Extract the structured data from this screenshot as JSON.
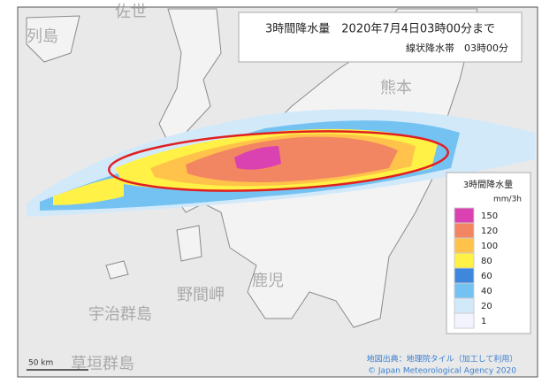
{
  "header": {
    "title": "3時間降水量　2020年7月4日03時00分まで",
    "subtitle": "線状降水帯　03時00分"
  },
  "legend": {
    "title": "3時間降水量",
    "unit": "mm/3h",
    "levels": [
      {
        "label": 150,
        "color": "#d942b0"
      },
      {
        "label": 120,
        "color": "#f38662"
      },
      {
        "label": 100,
        "color": "#ffc24a"
      },
      {
        "label": 80,
        "color": "#fff145"
      },
      {
        "label": 60,
        "color": "#3f87dc"
      },
      {
        "label": 40,
        "color": "#74c2f2"
      },
      {
        "label": 20,
        "color": "#d2e9fa"
      },
      {
        "label": 1,
        "color": "#f4f4ff"
      }
    ]
  },
  "places": [
    "佐世",
    "列島",
    "熊本",
    "鹿児",
    "宇治群島",
    "野間岬",
    "草垣群島"
  ],
  "scale": "50 km",
  "attribution": [
    "地図出典：地理院タイル（加工して利用）",
    "© Japan Meteorological Agency 2020"
  ]
}
